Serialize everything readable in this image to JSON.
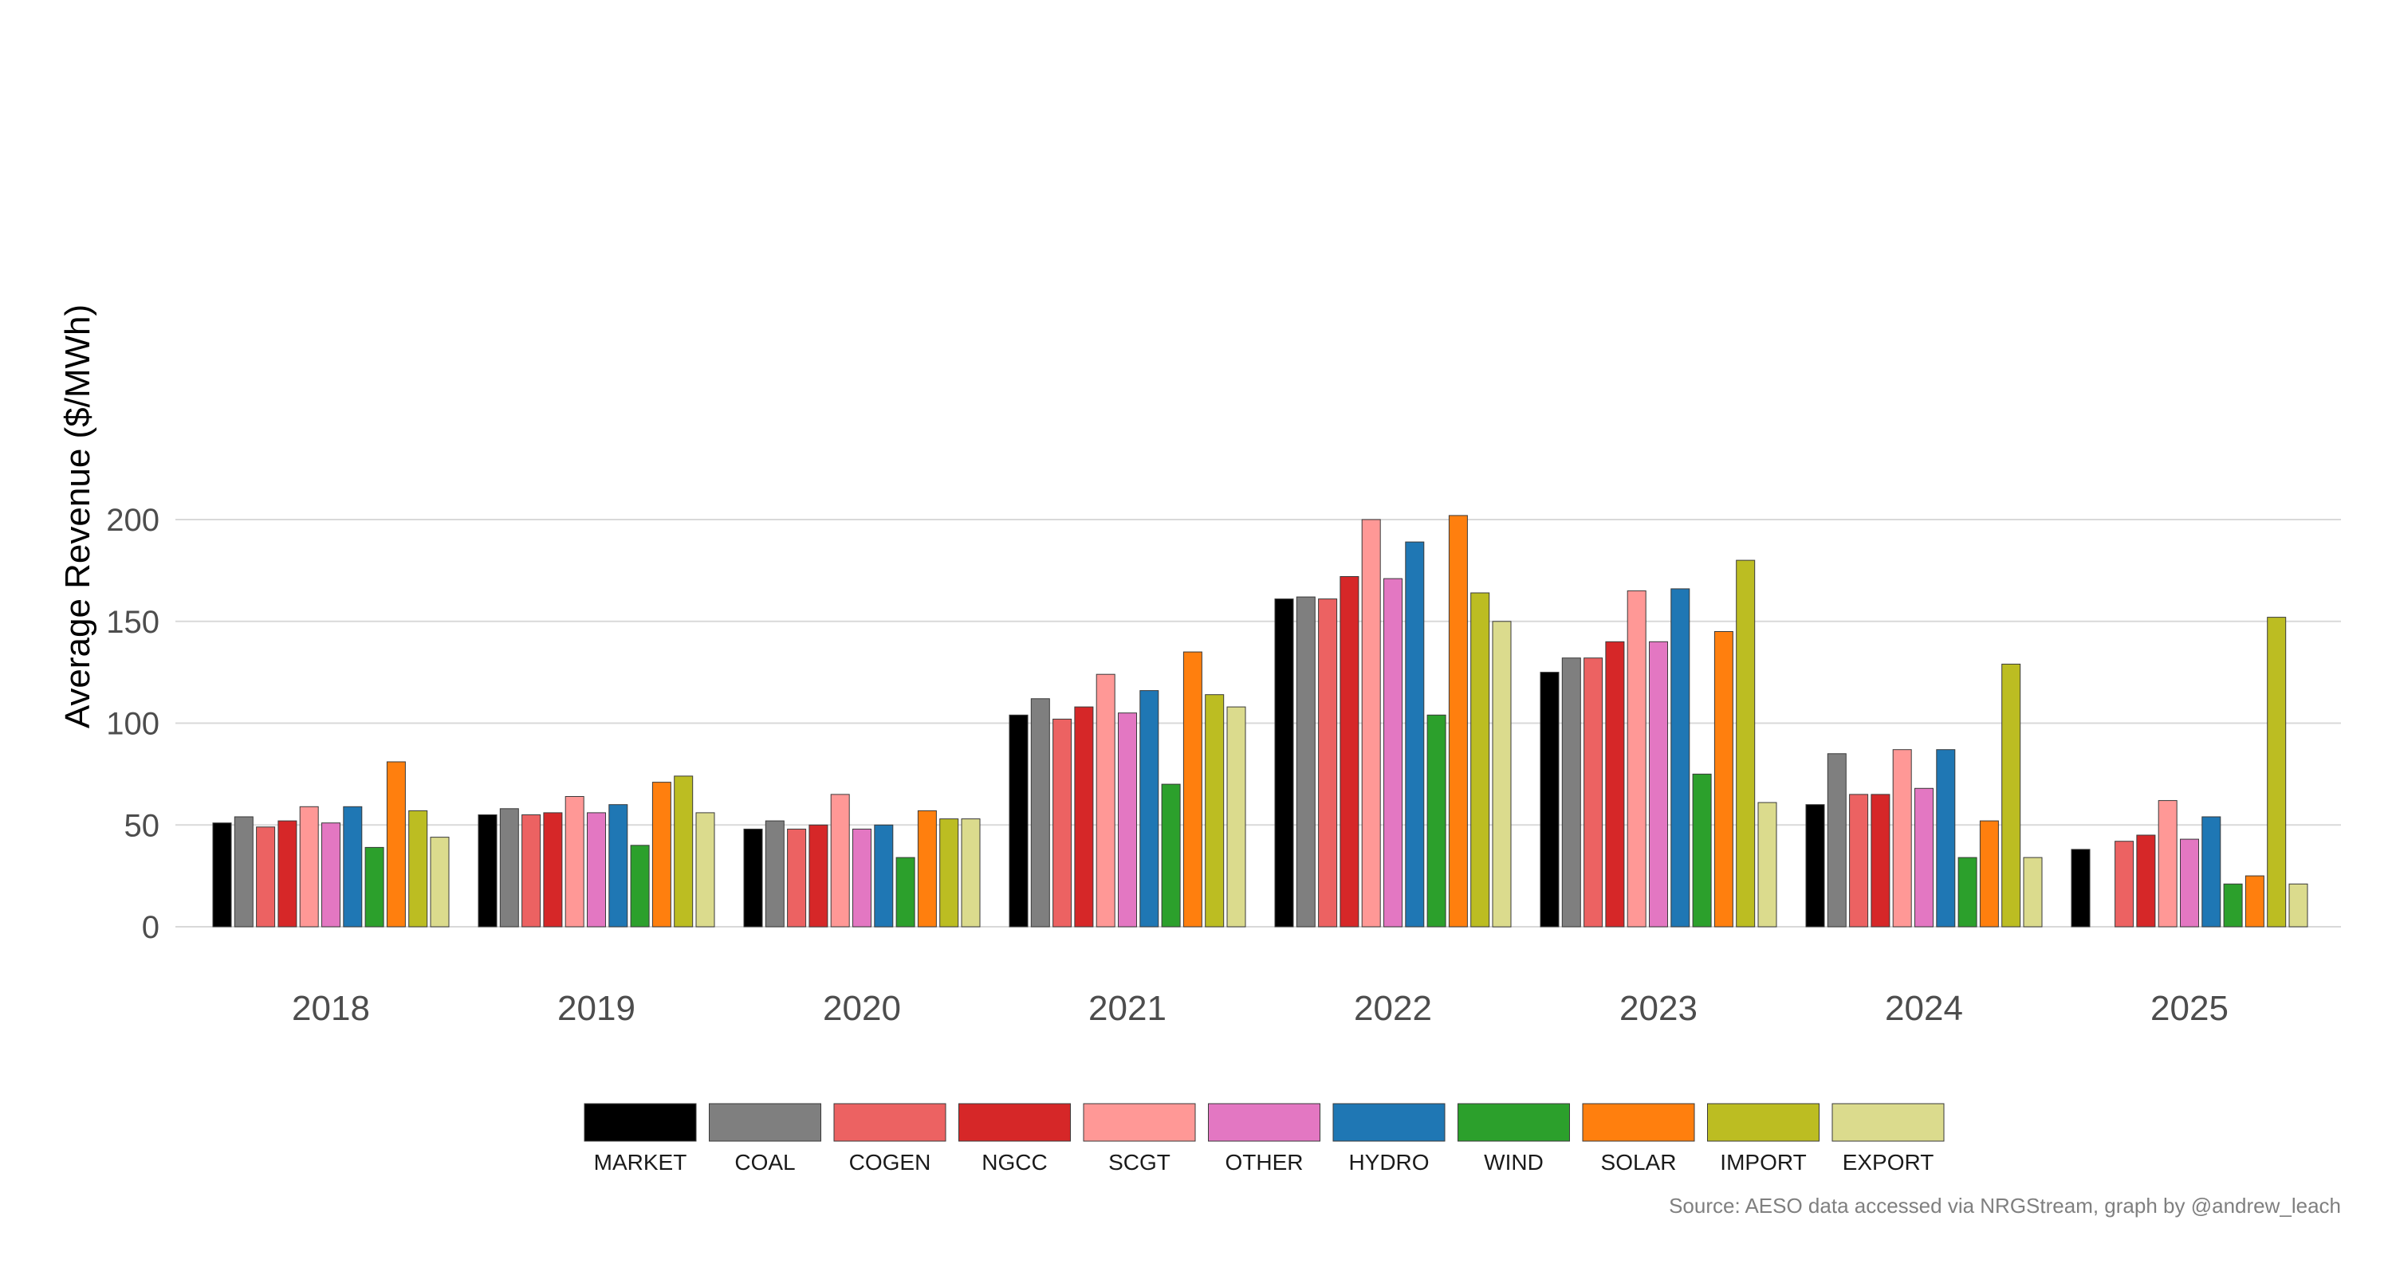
{
  "chart_data": {
    "type": "bar",
    "title": "",
    "xlabel": "",
    "ylabel": "Average Revenue ($/MWh)",
    "ylim": [
      0,
      220
    ],
    "yticks": [
      0,
      50,
      100,
      150,
      200
    ],
    "grid": "horizontal major lines",
    "legend_position": "bottom",
    "caption": "Source: AESO data accessed via NRGStream, graph by @andrew_leach",
    "categories": [
      "2018",
      "2019",
      "2020",
      "2021",
      "2022",
      "2023",
      "2024",
      "2025"
    ],
    "series": [
      {
        "name": "MARKET",
        "color": "#000000",
        "values": [
          51,
          55,
          48,
          104,
          161,
          125,
          60,
          38
        ]
      },
      {
        "name": "COAL",
        "color": "#7f7f7f",
        "values": [
          54,
          58,
          52,
          112,
          162,
          132,
          85,
          null
        ]
      },
      {
        "name": "COGEN",
        "color": "#ec6262",
        "values": [
          49,
          55,
          48,
          102,
          161,
          132,
          65,
          42
        ]
      },
      {
        "name": "NGCC",
        "color": "#d62728",
        "values": [
          52,
          56,
          50,
          108,
          172,
          140,
          65,
          45
        ]
      },
      {
        "name": "SCGT",
        "color": "#ff9896",
        "values": [
          59,
          64,
          65,
          124,
          200,
          165,
          87,
          62
        ]
      },
      {
        "name": "OTHER",
        "color": "#e377c2",
        "values": [
          51,
          56,
          48,
          105,
          171,
          140,
          68,
          43
        ]
      },
      {
        "name": "HYDRO",
        "color": "#1f77b4",
        "values": [
          59,
          60,
          50,
          116,
          189,
          166,
          87,
          54
        ]
      },
      {
        "name": "WIND",
        "color": "#2ca02c",
        "values": [
          39,
          40,
          34,
          70,
          104,
          75,
          34,
          21
        ]
      },
      {
        "name": "SOLAR",
        "color": "#ff7f0e",
        "values": [
          81,
          71,
          57,
          135,
          202,
          145,
          52,
          25
        ]
      },
      {
        "name": "IMPORT",
        "color": "#bcbd22",
        "values": [
          57,
          74,
          53,
          114,
          164,
          180,
          129,
          152
        ]
      },
      {
        "name": "EXPORT",
        "color": "#dbdb8d",
        "values": [
          44,
          56,
          53,
          108,
          150,
          61,
          34,
          21
        ]
      }
    ]
  }
}
